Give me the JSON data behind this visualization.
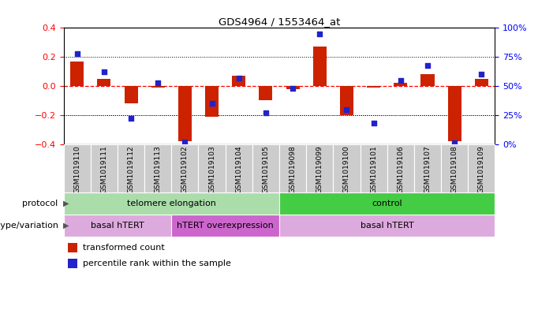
{
  "title": "GDS4964 / 1553464_at",
  "samples": [
    "GSM1019110",
    "GSM1019111",
    "GSM1019112",
    "GSM1019113",
    "GSM1019102",
    "GSM1019103",
    "GSM1019104",
    "GSM1019105",
    "GSM1019098",
    "GSM1019099",
    "GSM1019100",
    "GSM1019101",
    "GSM1019106",
    "GSM1019107",
    "GSM1019108",
    "GSM1019109"
  ],
  "bar_values": [
    0.17,
    0.05,
    -0.12,
    -0.01,
    -0.38,
    -0.21,
    0.07,
    -0.1,
    -0.02,
    0.27,
    -0.2,
    -0.01,
    0.02,
    0.08,
    -0.38,
    0.05
  ],
  "percentile_values": [
    78,
    62,
    22,
    53,
    2,
    35,
    57,
    27,
    48,
    95,
    30,
    18,
    55,
    68,
    1,
    60
  ],
  "ylim": [
    -0.4,
    0.4
  ],
  "y2lim": [
    0,
    100
  ],
  "yticks": [
    -0.4,
    -0.2,
    0.0,
    0.2,
    0.4
  ],
  "y2ticks": [
    0,
    25,
    50,
    75,
    100
  ],
  "y2ticklabels": [
    "0%",
    "25%",
    "50%",
    "75%",
    "100%"
  ],
  "hline_dotted": [
    -0.2,
    0.2
  ],
  "bar_color": "#cc2200",
  "scatter_color": "#2222cc",
  "bar_width": 0.5,
  "protocol_groups": [
    {
      "label": "telomere elongation",
      "start": 0,
      "end": 8,
      "color": "#aaddaa"
    },
    {
      "label": "control",
      "start": 8,
      "end": 16,
      "color": "#44cc44"
    }
  ],
  "genotype_groups": [
    {
      "label": "basal hTERT",
      "start": 0,
      "end": 4,
      "color": "#ddaadd"
    },
    {
      "label": "hTERT overexpression",
      "start": 4,
      "end": 8,
      "color": "#cc66cc"
    },
    {
      "label": "basal hTERT",
      "start": 8,
      "end": 16,
      "color": "#ddaadd"
    }
  ],
  "protocol_label": "protocol",
  "genotype_label": "genotype/variation",
  "legend_items": [
    "transformed count",
    "percentile rank within the sample"
  ],
  "bg_color": "#ffffff",
  "tick_bg_color": "#cccccc"
}
